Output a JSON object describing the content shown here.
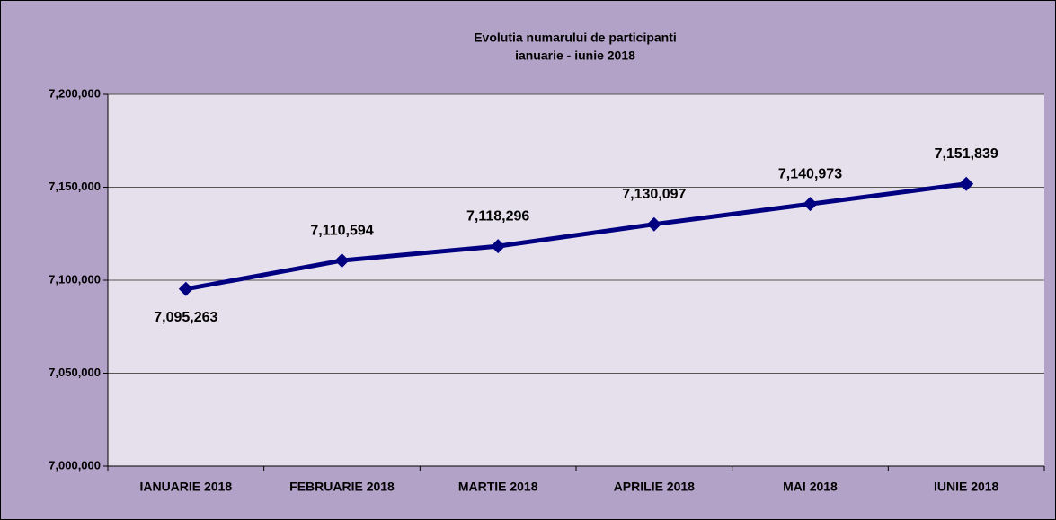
{
  "chart_data": {
    "type": "line",
    "title": "Evolutia numarului de participanti",
    "subtitle": "ianuarie - iunie 2018",
    "categories": [
      "IANUARIE 2018",
      "FEBRUARIE 2018",
      "MARTIE 2018",
      "APRILIE 2018",
      "MAI 2018",
      "IUNIE 2018"
    ],
    "series": [
      {
        "name": "Participanti",
        "color": "#000080",
        "values": [
          7095263,
          7110594,
          7118296,
          7130097,
          7140973,
          7151839
        ],
        "value_labels": [
          "7,095,263",
          "7,110,594",
          "7,118,296",
          "7,130,097",
          "7,140,973",
          "7,151,839"
        ]
      }
    ],
    "ylim": [
      7000000,
      7200000
    ],
    "yticks": [
      {
        "value": 7000000,
        "label": "7,000,000"
      },
      {
        "value": 7050000,
        "label": "7,050,000"
      },
      {
        "value": 7100000,
        "label": "7,100,000"
      },
      {
        "value": 7150000,
        "label": "7,150,000"
      },
      {
        "value": 7200000,
        "label": "7,200,000"
      }
    ],
    "grid": true
  }
}
